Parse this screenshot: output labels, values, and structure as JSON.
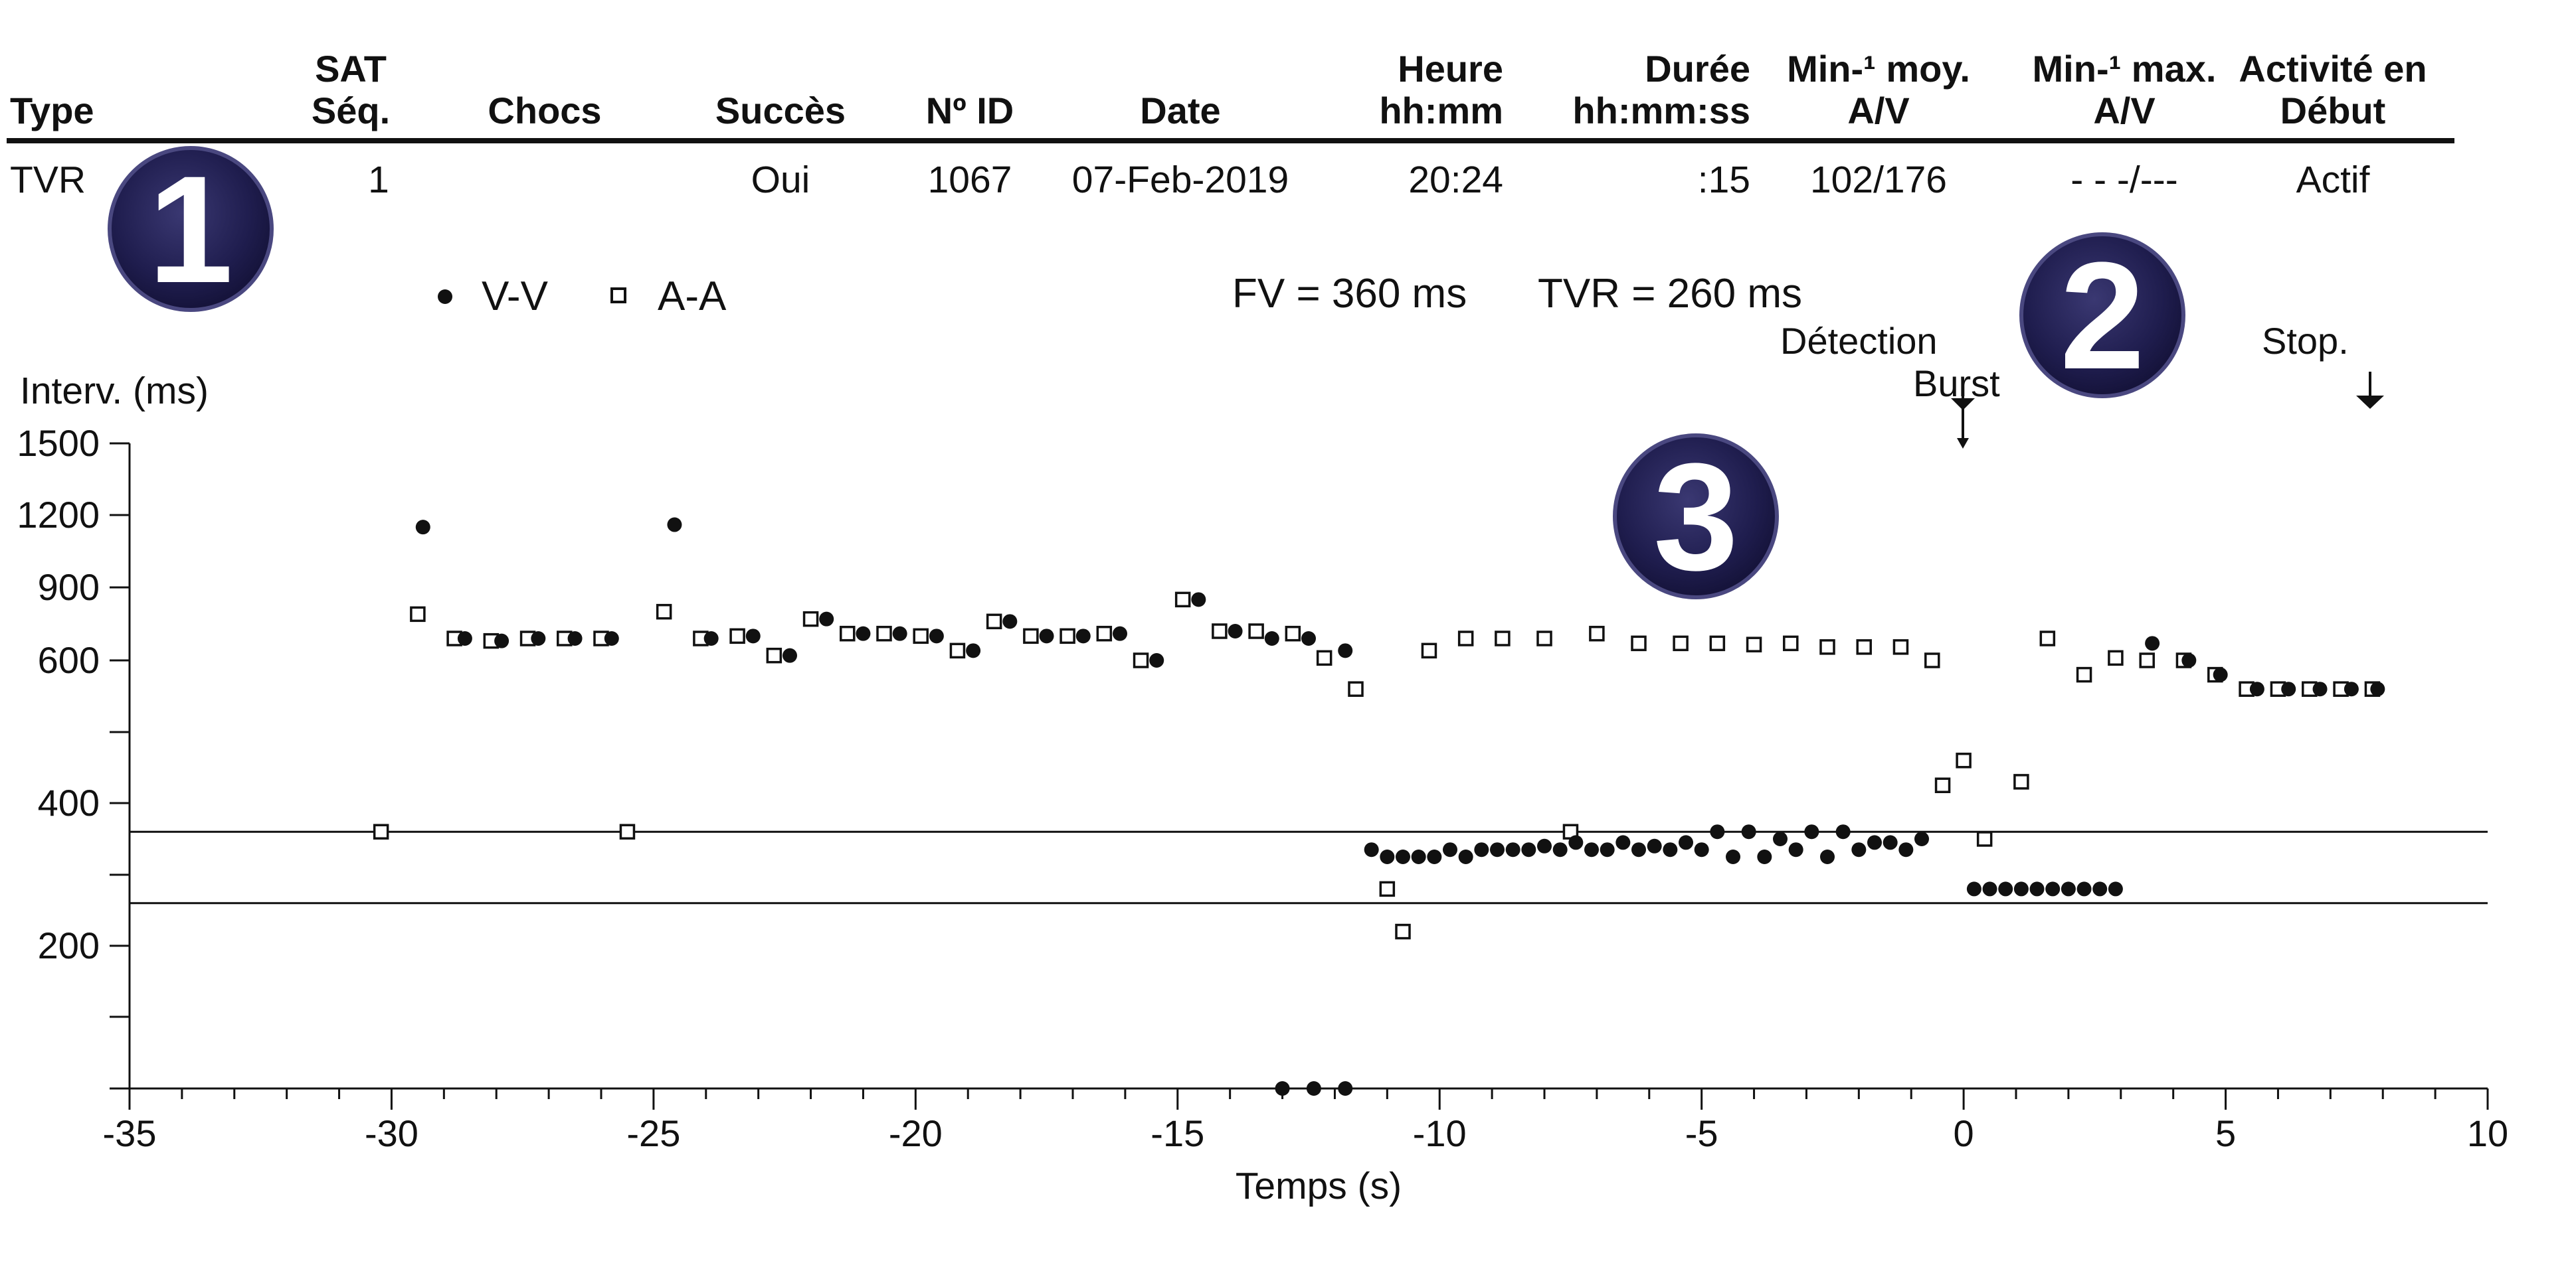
{
  "table": {
    "headers": [
      {
        "key": "type",
        "lines": [
          "",
          "Type"
        ]
      },
      {
        "key": "sat_seq",
        "lines": [
          "SAT",
          "Séq."
        ]
      },
      {
        "key": "chocs",
        "lines": [
          "",
          "Chocs"
        ]
      },
      {
        "key": "succes",
        "lines": [
          "",
          "Succès"
        ]
      },
      {
        "key": "id",
        "lines": [
          "",
          "Nº ID"
        ]
      },
      {
        "key": "date",
        "lines": [
          "",
          "Date"
        ]
      },
      {
        "key": "heure",
        "lines": [
          "Heure",
          "hh:mm"
        ]
      },
      {
        "key": "duree",
        "lines": [
          "Durée",
          "hh:mm:ss"
        ]
      },
      {
        "key": "moy",
        "lines": [
          "Min-¹ moy.",
          "A/V"
        ]
      },
      {
        "key": "max",
        "lines": [
          "Min-¹ max.",
          "A/V"
        ]
      },
      {
        "key": "activite",
        "lines": [
          "Activité en",
          "Début"
        ]
      }
    ],
    "row": {
      "type": "TVR",
      "sat_seq": "1",
      "chocs": "",
      "succes": "Oui",
      "id": "1067",
      "date": "07-Feb-2019",
      "heure": "20:24",
      "duree": ":15",
      "moy": "102/176",
      "max": "- - -/---",
      "activite": "Actif"
    }
  },
  "badges": [
    {
      "id": "badge-1",
      "label": "1"
    },
    {
      "id": "badge-2",
      "label": "2"
    },
    {
      "id": "badge-3",
      "label": "3"
    }
  ],
  "colors": {
    "badge_fill": "#1f1d4e",
    "badge_edge": "#4a4880",
    "ink": "#111111"
  },
  "chart_data": {
    "type": "scatter",
    "legend": [
      {
        "name": "V-V",
        "marker": "filled-circle"
      },
      {
        "name": "A-A",
        "marker": "open-square"
      }
    ],
    "legend_placement": "top-left",
    "annotations": {
      "fv": "FV = 360 ms",
      "tvr": "TVR = 260 ms",
      "detection_1": "Détection",
      "detection_2": "Burst",
      "stop": "Stop."
    },
    "event_markers": [
      {
        "name": "Détection Burst",
        "x": 0
      },
      {
        "name": "Stop.",
        "x": 7.8
      }
    ],
    "ylabel": "Interv. (ms)",
    "xlabel": "Temps (s)",
    "xlim": [
      -35,
      10
    ],
    "x_ticks": [
      -35,
      -30,
      -25,
      -20,
      -15,
      -10,
      -5,
      0,
      5,
      10
    ],
    "y_ticks": [
      {
        "value": 1500,
        "label": "1500"
      },
      {
        "value": 1200,
        "label": "1200"
      },
      {
        "value": 900,
        "label": "900"
      },
      {
        "value": 600,
        "label": "600"
      },
      {
        "value": 500,
        "label": ""
      },
      {
        "value": 400,
        "label": "400"
      },
      {
        "value": 300,
        "label": ""
      },
      {
        "value": 200,
        "label": "200"
      },
      {
        "value": 100,
        "label": ""
      },
      {
        "value": 0,
        "label": ""
      }
    ],
    "threshold_lines": [
      {
        "name": "FV",
        "value": 360
      },
      {
        "name": "TVR",
        "value": 260
      }
    ],
    "series": [
      {
        "name": "V-V",
        "points": [
          [
            -29.4,
            1150
          ],
          [
            -28.6,
            690
          ],
          [
            -27.9,
            680
          ],
          [
            -27.2,
            690
          ],
          [
            -26.5,
            690
          ],
          [
            -25.8,
            690
          ],
          [
            -24.6,
            1160
          ],
          [
            -23.9,
            690
          ],
          [
            -23.1,
            700
          ],
          [
            -22.4,
            620
          ],
          [
            -21.7,
            770
          ],
          [
            -21.0,
            710
          ],
          [
            -20.3,
            710
          ],
          [
            -19.6,
            700
          ],
          [
            -18.9,
            640
          ],
          [
            -18.2,
            760
          ],
          [
            -17.5,
            700
          ],
          [
            -16.8,
            700
          ],
          [
            -16.1,
            710
          ],
          [
            -15.4,
            600
          ],
          [
            -14.6,
            850
          ],
          [
            -13.9,
            720
          ],
          [
            -13.2,
            690
          ],
          [
            -12.5,
            690
          ],
          [
            -11.8,
            640
          ],
          [
            -13.0,
            0
          ],
          [
            -12.4,
            0
          ],
          [
            -11.8,
            0
          ],
          [
            -11.3,
            335
          ],
          [
            -11.0,
            325
          ],
          [
            -10.7,
            325
          ],
          [
            -10.4,
            325
          ],
          [
            -10.1,
            325
          ],
          [
            -9.8,
            335
          ],
          [
            -9.5,
            325
          ],
          [
            -9.2,
            335
          ],
          [
            -8.9,
            335
          ],
          [
            -8.6,
            335
          ],
          [
            -8.3,
            335
          ],
          [
            -8.0,
            340
          ],
          [
            -7.7,
            335
          ],
          [
            -7.4,
            345
          ],
          [
            -7.1,
            335
          ],
          [
            -6.8,
            335
          ],
          [
            -6.5,
            345
          ],
          [
            -6.2,
            335
          ],
          [
            -5.9,
            340
          ],
          [
            -5.6,
            335
          ],
          [
            -5.3,
            345
          ],
          [
            -5.0,
            335
          ],
          [
            -4.7,
            360
          ],
          [
            -4.4,
            325
          ],
          [
            -4.1,
            360
          ],
          [
            -3.8,
            325
          ],
          [
            -3.5,
            350
          ],
          [
            -3.2,
            335
          ],
          [
            -2.9,
            360
          ],
          [
            -2.6,
            325
          ],
          [
            -2.3,
            360
          ],
          [
            -2.0,
            335
          ],
          [
            -1.7,
            345
          ],
          [
            -1.4,
            345
          ],
          [
            -1.1,
            335
          ],
          [
            -0.8,
            350
          ],
          [
            0.2,
            280
          ],
          [
            0.5,
            280
          ],
          [
            0.8,
            280
          ],
          [
            1.1,
            280
          ],
          [
            1.4,
            280
          ],
          [
            1.7,
            280
          ],
          [
            2.0,
            280
          ],
          [
            2.3,
            280
          ],
          [
            2.6,
            280
          ],
          [
            2.9,
            280
          ],
          [
            3.6,
            670
          ],
          [
            4.3,
            600
          ],
          [
            4.9,
            580
          ],
          [
            5.6,
            560
          ],
          [
            6.2,
            560
          ],
          [
            6.8,
            560
          ],
          [
            7.4,
            560
          ],
          [
            7.9,
            560
          ]
        ]
      },
      {
        "name": "A-A",
        "points": [
          [
            -30.2,
            360
          ],
          [
            -29.5,
            790
          ],
          [
            -28.8,
            690
          ],
          [
            -28.1,
            680
          ],
          [
            -27.4,
            690
          ],
          [
            -26.7,
            690
          ],
          [
            -26.0,
            690
          ],
          [
            -25.5,
            360
          ],
          [
            -24.8,
            800
          ],
          [
            -24.1,
            690
          ],
          [
            -23.4,
            700
          ],
          [
            -22.7,
            620
          ],
          [
            -22.0,
            770
          ],
          [
            -21.3,
            710
          ],
          [
            -20.6,
            710
          ],
          [
            -19.9,
            700
          ],
          [
            -19.2,
            640
          ],
          [
            -18.5,
            760
          ],
          [
            -17.8,
            700
          ],
          [
            -17.1,
            700
          ],
          [
            -16.4,
            710
          ],
          [
            -15.7,
            600
          ],
          [
            -14.9,
            850
          ],
          [
            -14.2,
            720
          ],
          [
            -13.5,
            720
          ],
          [
            -12.8,
            710
          ],
          [
            -12.2,
            610
          ],
          [
            -11.6,
            560
          ],
          [
            -11.0,
            280
          ],
          [
            -10.7,
            220
          ],
          [
            -10.2,
            640
          ],
          [
            -9.5,
            690
          ],
          [
            -8.8,
            690
          ],
          [
            -8.0,
            690
          ],
          [
            -7.5,
            360
          ],
          [
            -7.0,
            710
          ],
          [
            -6.2,
            670
          ],
          [
            -5.4,
            670
          ],
          [
            -4.7,
            670
          ],
          [
            -4.0,
            665
          ],
          [
            -3.3,
            670
          ],
          [
            -2.6,
            655
          ],
          [
            -1.9,
            655
          ],
          [
            -1.2,
            655
          ],
          [
            -0.6,
            600
          ],
          [
            -0.4,
            425
          ],
          [
            0.0,
            460
          ],
          [
            0.4,
            350
          ],
          [
            1.1,
            430
          ],
          [
            1.6,
            690
          ],
          [
            2.3,
            580
          ],
          [
            2.9,
            610
          ],
          [
            3.5,
            600
          ],
          [
            4.2,
            600
          ],
          [
            4.8,
            580
          ],
          [
            5.4,
            560
          ],
          [
            6.0,
            560
          ],
          [
            6.6,
            560
          ],
          [
            7.2,
            560
          ],
          [
            7.8,
            560
          ]
        ]
      }
    ]
  }
}
